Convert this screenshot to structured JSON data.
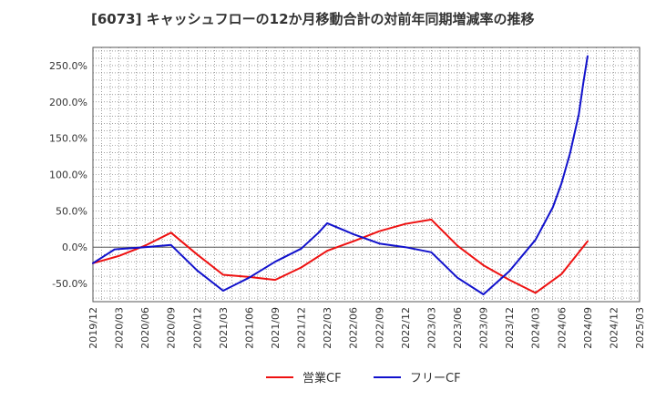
{
  "chart_data": {
    "type": "line",
    "title": "[6073]  キャッシュフローの12か月移動合計の対前年同期増減率の推移",
    "xlabel": "",
    "ylabel": "",
    "ylim": [
      -75,
      275
    ],
    "y_ticks": [
      -50,
      0,
      50,
      100,
      150,
      200,
      250
    ],
    "y_tick_labels": [
      "-50.0%",
      "0.0%",
      "50.0%",
      "100.0%",
      "150.0%",
      "200.0%",
      "250.0%"
    ],
    "x_tick_labels": [
      "2019/12",
      "2020/03",
      "2020/06",
      "2020/09",
      "2020/12",
      "2021/03",
      "2021/06",
      "2021/09",
      "2021/12",
      "2022/03",
      "2022/06",
      "2022/09",
      "2022/12",
      "2023/03",
      "2023/06",
      "2023/09",
      "2023/12",
      "2024/03",
      "2024/06",
      "2024/09",
      "2024/12",
      "2025/03"
    ],
    "x_range_months": [
      0,
      63
    ],
    "grid": true,
    "legend_position": "bottom-center",
    "series": [
      {
        "name": "営業CF",
        "color": "#ee1111",
        "x": [
          0,
          3,
          6,
          9,
          12,
          15,
          18,
          21,
          24,
          27,
          30,
          33,
          36,
          39,
          42,
          45,
          48,
          51,
          54,
          57
        ],
        "values": [
          -22,
          -12,
          2,
          20,
          -10,
          -38,
          -41,
          -45,
          -28,
          -5,
          8,
          22,
          32,
          38,
          2,
          -25,
          -45,
          -63,
          -37,
          8
        ]
      },
      {
        "name": "フリーCF",
        "color": "#1111cc",
        "x": [
          0,
          2.5,
          6,
          9,
          12,
          15,
          18,
          21,
          24,
          26,
          27,
          30,
          33,
          36,
          39,
          42,
          45,
          48,
          51,
          53,
          54,
          55,
          56,
          56.5,
          57
        ],
        "values": [
          -22,
          -3,
          0,
          3,
          -32,
          -60,
          -42,
          -20,
          -2,
          20,
          33,
          18,
          5,
          0,
          -7,
          -42,
          -65,
          -33,
          10,
          55,
          88,
          130,
          183,
          225,
          263
        ]
      }
    ]
  }
}
